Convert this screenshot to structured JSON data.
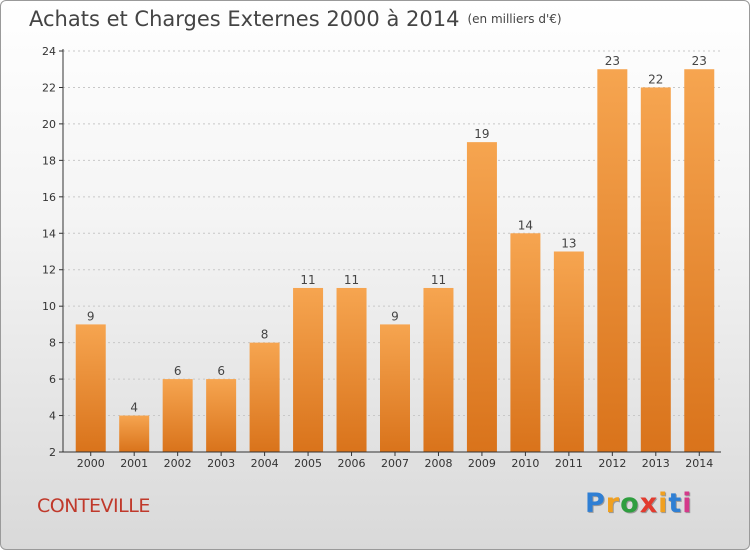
{
  "header": {
    "title": "Achats et Charges Externes 2000 à 2014",
    "unit": "(en milliers d'€)"
  },
  "footer": {
    "city": "CONTEVILLE",
    "logo": {
      "letters": [
        "P",
        "r",
        "o",
        "x",
        "i",
        "t",
        "i"
      ],
      "colors": [
        "#2f7fd4",
        "#f0a020",
        "#2f9e3f",
        "#e23b2e",
        "#f0a020",
        "#2f7fd4",
        "#d43a8a"
      ]
    }
  },
  "colors": {
    "bar_top": "#f6a550",
    "bar_bottom": "#d9731b",
    "axis": "#333333",
    "grid": "#c8c8c8"
  },
  "chart_data": {
    "type": "bar",
    "categories": [
      "2000",
      "2001",
      "2002",
      "2003",
      "2004",
      "2005",
      "2006",
      "2007",
      "2008",
      "2009",
      "2010",
      "2011",
      "2012",
      "2013",
      "2014"
    ],
    "values": [
      9,
      4,
      6,
      6,
      8,
      11,
      11,
      9,
      11,
      19,
      14,
      13,
      23,
      22,
      23
    ],
    "title": "Achats et Charges Externes 2000 à 2014",
    "ylim": [
      2,
      24
    ],
    "yticks": [
      2,
      4,
      6,
      8,
      10,
      12,
      14,
      16,
      18,
      20,
      22,
      24
    ],
    "grid": true,
    "data_labels": true
  }
}
